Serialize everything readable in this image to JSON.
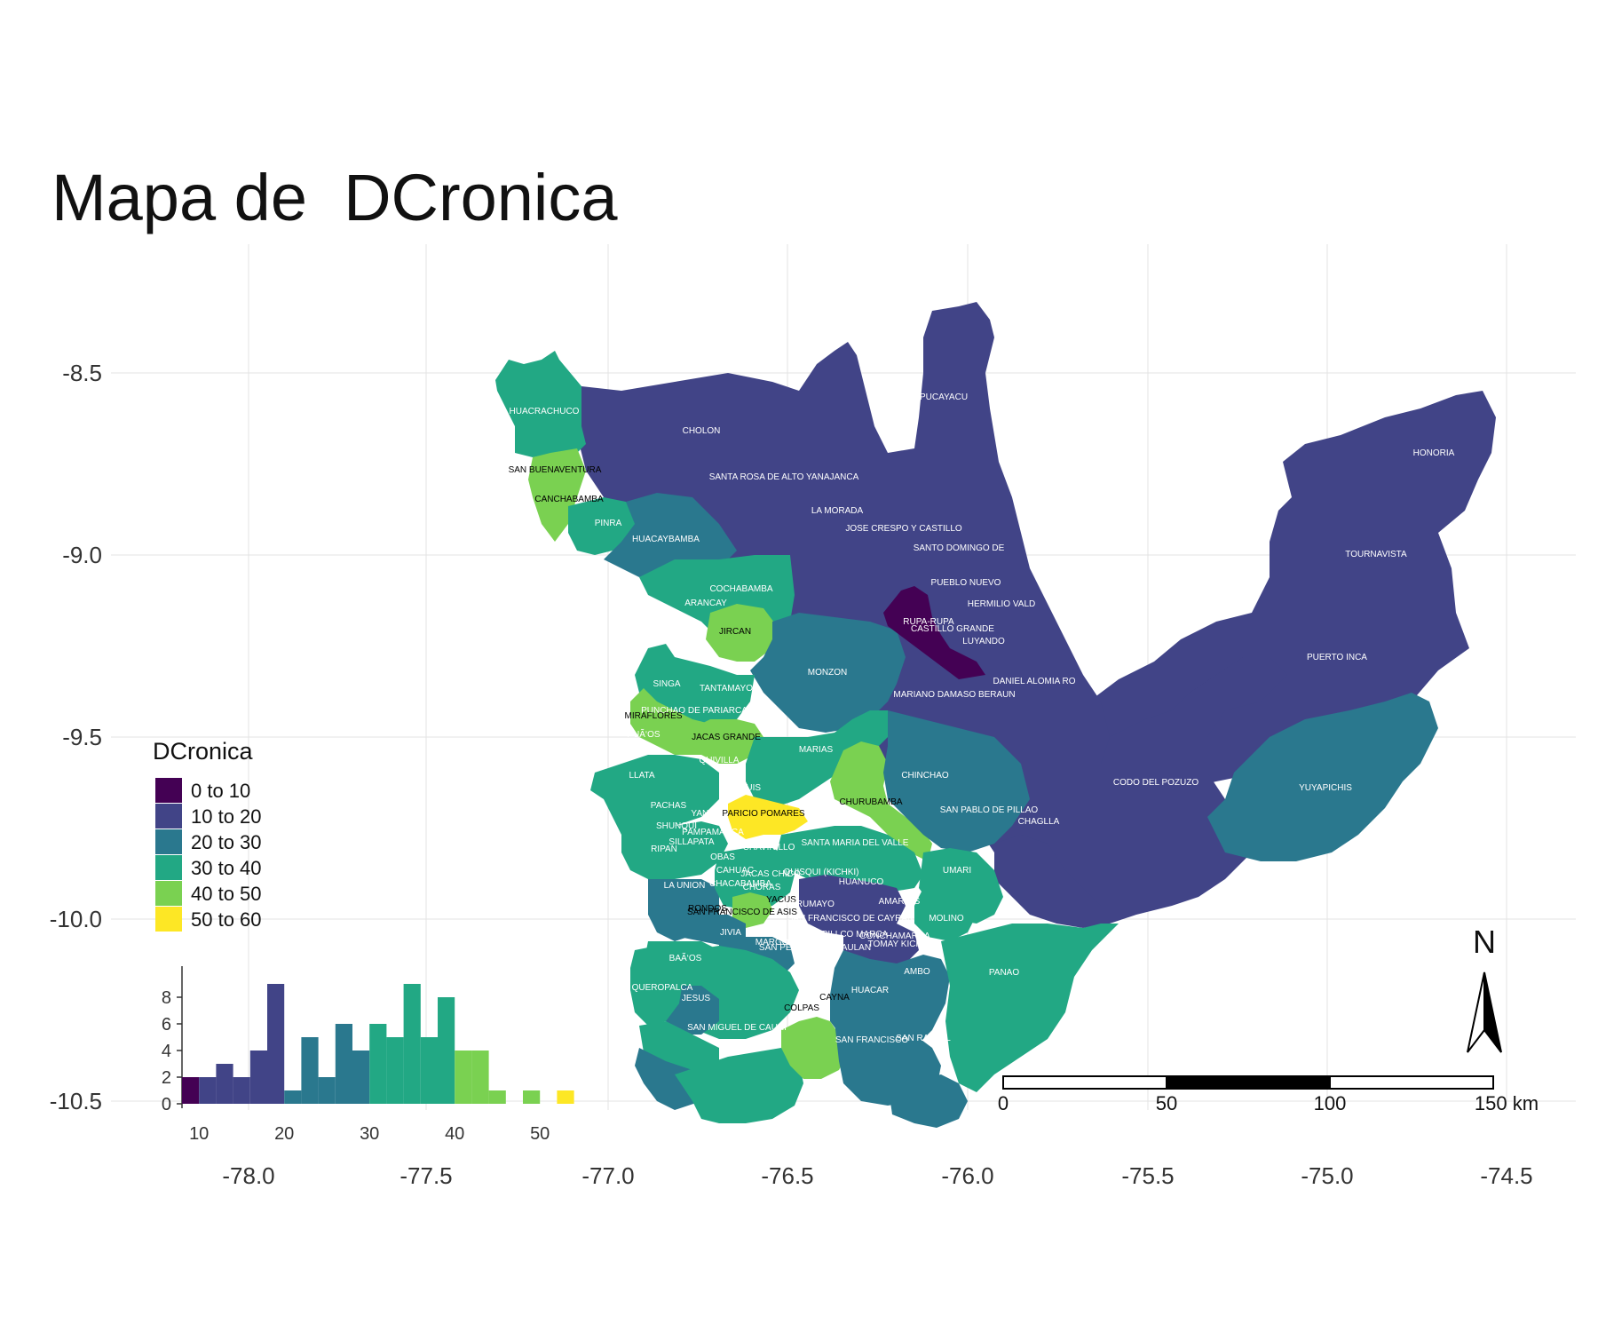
{
  "title": "Mapa de  DCronica",
  "map": {
    "x_ticks": [
      "-78.0",
      "-77.5",
      "-77.0",
      "-76.5",
      "-76.0",
      "-75.5",
      "-75.0",
      "-74.5"
    ],
    "y_ticks": [
      "-8.5",
      "-9.0",
      "-9.5",
      "-10.0",
      "-10.5"
    ],
    "north_label": "N",
    "scalebar_labels": [
      "0",
      "50",
      "100",
      "150 km"
    ]
  },
  "legend": {
    "title": "DCronica",
    "items": [
      {
        "label": "0 to 10",
        "color": "#440154"
      },
      {
        "label": "10 to 20",
        "color": "#414487"
      },
      {
        "label": "20 to 30",
        "color": "#2a788e"
      },
      {
        "label": "30 to 40",
        "color": "#22a884"
      },
      {
        "label": "40 to 50",
        "color": "#7ad151"
      },
      {
        "label": "50 to 60",
        "color": "#fde725"
      }
    ]
  },
  "districts": [
    "HUACRACHUCO",
    "CHOLON",
    "PUCAYACU",
    "HONORIA",
    "SAN BUENAVENTURA",
    "SANTA ROSA DE ALTO YANAJANCA",
    "CANCHABAMBA",
    "LA MORADA",
    "PINRA",
    "HUACAYBAMBA",
    "JOSE CRESPO Y CASTILLO",
    "SANTO DOMINGO DE",
    "TOURNAVISTA",
    "COCHABAMBA",
    "PUEBLO NUEVO",
    "ARANCAY",
    "HERMILIO VALD",
    "RUPA-RUPA",
    "CASTILLO GRANDE",
    "JIRCAN",
    "LUYANDO",
    "PUERTO INCA",
    "MONZON",
    "SINGA",
    "DANIEL ALOMIA RO",
    "TANTAMAYO",
    "MARIANO DAMASO BERAUN",
    "PUNCHAO DE PARIARCA",
    "MIRAFLORES",
    "PUÃ‘OS",
    "JACAS GRANDE",
    "MARIAS",
    "QUIVILLA",
    "CHINCHAO",
    "LLATA",
    "CODO DEL POZUZO",
    "CHUQUIS",
    "YUYAPICHIS",
    "CHURUBAMBA",
    "PACHAS",
    "YANAS",
    "PARICIO POMARES",
    "SAN PABLO DE PILLAO",
    "CHAGLLA",
    "SHUNQUI",
    "PAMPAMARCA",
    "SILLAPATA",
    "SANTA MARIA DEL VALLE",
    "CHAVINILLO",
    "RIPAN",
    "OBAS",
    "UMARI",
    "CAHUAC",
    "JACAS CHICO",
    "QUISQUI (KICHKI)",
    "LA UNION",
    "CHACABAMBA",
    "HUANUCO",
    "CHORAS",
    "YACUS",
    "AMARILIS",
    "YARUMAYO",
    "RONDOS",
    "SAN FRANCISCO DE ASIS",
    "SAN FRANCISCO DE CAYRAN",
    "MOLINO",
    "JIVIA",
    "PILLCO MARCA",
    "CONCHAMARCA",
    "MARGOS",
    "TOMAY KICHWA",
    "SAN PEDRO DE CHAULAN",
    "BAÃ‘OS",
    "AMBO",
    "PANAO",
    "QUEROPALCA",
    "HUACAR",
    "JESUS",
    "CAYNA",
    "COLPAS",
    "SAN MIGUEL DE CAURI",
    "SAN FRANCISCO",
    "SAN RAFAEL"
  ],
  "chart_data": {
    "type": "bar",
    "title": "",
    "xlabel": "",
    "ylabel": "",
    "x_ticks": [
      10,
      20,
      30,
      40,
      50
    ],
    "y_ticks": [
      0,
      2,
      4,
      6,
      8
    ],
    "bin_width": 2,
    "bin_starts": [
      8,
      10,
      12,
      14,
      16,
      18,
      20,
      22,
      24,
      26,
      28,
      30,
      32,
      34,
      36,
      38,
      40,
      42,
      44,
      46,
      48,
      50,
      52
    ],
    "values": [
      2,
      2,
      3,
      2,
      4,
      9,
      1,
      5,
      2,
      6,
      4,
      6,
      5,
      9,
      5,
      8,
      4,
      4,
      1,
      0,
      1,
      0,
      1
    ],
    "bin_colors": [
      "#440154",
      "#414487",
      "#414487",
      "#414487",
      "#414487",
      "#414487",
      "#2a788e",
      "#2a788e",
      "#2a788e",
      "#2a788e",
      "#2a788e",
      "#22a884",
      "#22a884",
      "#22a884",
      "#22a884",
      "#22a884",
      "#7ad151",
      "#7ad151",
      "#7ad151",
      "#7ad151",
      "#7ad151",
      "#fde725",
      "#fde725"
    ],
    "xlim": [
      8,
      54
    ],
    "ylim": [
      0,
      9.5
    ]
  }
}
